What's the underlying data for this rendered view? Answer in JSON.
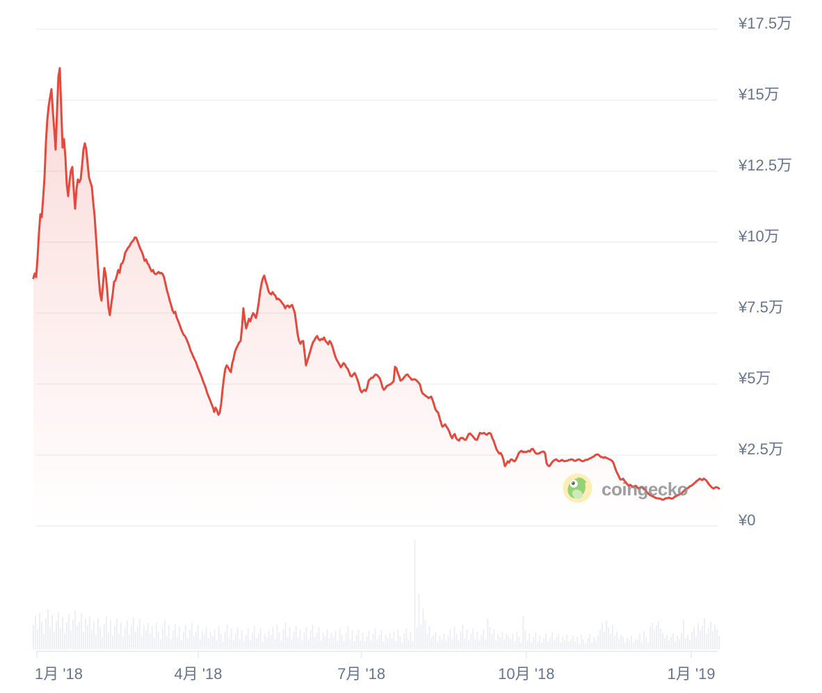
{
  "page": {
    "background": "#ffffff"
  },
  "watermark": {
    "text": "coingecko"
  },
  "colors": {
    "line": "#e5483d",
    "area_top": "rgba(229,72,61,0.22)",
    "area_bottom": "rgba(229,72,61,0)",
    "gridline": "#eef0f4",
    "axis_line": "#e7eaef",
    "label": "#66758d",
    "volume_bar": "#edeff5",
    "watermark_text": "#8a8a8a",
    "gecko_circle": "#fceeb5",
    "gecko_body": "#93d276",
    "gecko_belly": "#cdeab8",
    "gecko_pupil": "#4e5b4e"
  },
  "chart_data": {
    "type": "line",
    "title": "",
    "currency": "JPY",
    "legend": "none",
    "grid": "horizontal-only",
    "y_axis": {
      "position": "right",
      "unit": "万円 (10,000 JPY)",
      "ylim": [
        0,
        17.5
      ],
      "ticks": [
        {
          "value": 0,
          "label": "¥0"
        },
        {
          "value": 2.5,
          "label": "¥2.5万"
        },
        {
          "value": 5,
          "label": "¥5万"
        },
        {
          "value": 7.5,
          "label": "¥7.5万"
        },
        {
          "value": 10,
          "label": "¥10万"
        },
        {
          "value": 12.5,
          "label": "¥12.5万"
        },
        {
          "value": 15,
          "label": "¥15万"
        },
        {
          "value": 17.5,
          "label": "¥17.5万"
        }
      ]
    },
    "x_axis": {
      "unit": "days since 2018-01-01",
      "xlim": [
        -2,
        380.5
      ],
      "ticks": [
        {
          "day": 0,
          "label": "1月 '18"
        },
        {
          "day": 90,
          "label": "4月 '18"
        },
        {
          "day": 181,
          "label": "7月 '18"
        },
        {
          "day": 273,
          "label": "10月 '18"
        },
        {
          "day": 365,
          "label": "1月 '19"
        }
      ]
    },
    "price_series": {
      "name": "price",
      "unit": "万円",
      "start_day": -1.94,
      "end_day": 380.5,
      "values": [
        8.73,
        8.9,
        8.77,
        9.46,
        10.32,
        10.98,
        10.88,
        11.54,
        12.28,
        13.5,
        14.31,
        14.8,
        15.1,
        15.39,
        14.61,
        13.97,
        13.26,
        14.61,
        15.83,
        16.13,
        14.73,
        13.33,
        13.63,
        13.01,
        12.03,
        11.62,
        12.16,
        12.52,
        12.65,
        11.86,
        11.18,
        11.86,
        12.21,
        12.11,
        12.21,
        12.7,
        13.26,
        13.48,
        13.26,
        12.77,
        12.28,
        12.11,
        11.96,
        11.42,
        10.93,
        10.2,
        9.46,
        8.73,
        8.19,
        7.94,
        8.48,
        9.09,
        8.85,
        8.36,
        7.7,
        7.43,
        7.82,
        8.16,
        8.6,
        8.65,
        8.82,
        9.02,
        8.92,
        9.22,
        9.26,
        9.39,
        9.63,
        9.71,
        9.8,
        9.85,
        9.95,
        10.02,
        10.07,
        10.17,
        10.15,
        10.02,
        9.88,
        9.75,
        9.66,
        9.51,
        9.34,
        9.39,
        9.26,
        9.19,
        9.07,
        8.97,
        9.02,
        8.9,
        8.87,
        8.9,
        8.95,
        8.9,
        8.92,
        8.87,
        8.75,
        8.53,
        8.31,
        8.14,
        7.94,
        7.79,
        7.6,
        7.5,
        7.55,
        7.35,
        7.23,
        7.11,
        6.96,
        6.84,
        6.74,
        6.69,
        6.59,
        6.47,
        6.35,
        6.18,
        6.08,
        5.96,
        5.86,
        5.76,
        5.61,
        5.49,
        5.37,
        5.25,
        5.1,
        4.98,
        4.85,
        4.68,
        4.56,
        4.44,
        4.31,
        4.19,
        4.02,
        4.17,
        4.07,
        3.92,
        4.0,
        4.31,
        4.8,
        5.22,
        5.54,
        5.66,
        5.59,
        5.49,
        5.42,
        5.74,
        5.91,
        6.15,
        6.27,
        6.37,
        6.47,
        6.52,
        7.01,
        7.67,
        7.25,
        6.96,
        7.13,
        7.3,
        7.21,
        7.38,
        7.5,
        7.43,
        7.33,
        7.55,
        7.87,
        8.24,
        8.53,
        8.73,
        8.82,
        8.63,
        8.48,
        8.28,
        8.19,
        8.16,
        8.24,
        8.16,
        8.11,
        7.99,
        8.01,
        7.97,
        7.92,
        7.84,
        7.79,
        7.67,
        7.75,
        7.77,
        7.7,
        7.75,
        7.79,
        7.65,
        7.5,
        7.13,
        6.76,
        6.52,
        6.42,
        6.5,
        6.52,
        6.1,
        5.66,
        5.83,
        5.98,
        6.15,
        6.32,
        6.47,
        6.54,
        6.64,
        6.69,
        6.59,
        6.54,
        6.59,
        6.57,
        6.64,
        6.52,
        6.47,
        6.4,
        6.52,
        6.45,
        6.32,
        6.15,
        5.98,
        5.86,
        5.78,
        5.69,
        5.59,
        5.66,
        5.74,
        5.69,
        5.59,
        5.54,
        5.42,
        5.29,
        5.27,
        5.34,
        5.39,
        5.29,
        5.15,
        5.0,
        4.8,
        4.71,
        4.76,
        4.8,
        4.76,
        4.88,
        5.12,
        5.17,
        5.22,
        5.22,
        5.29,
        5.34,
        5.32,
        5.27,
        5.2,
        5.07,
        4.88,
        4.8,
        4.85,
        4.93,
        4.95,
        4.98,
        5.0,
        5.05,
        5.1,
        5.61,
        5.56,
        5.39,
        5.27,
        5.12,
        5.15,
        5.2,
        5.27,
        5.32,
        5.34,
        5.27,
        5.22,
        5.15,
        5.17,
        5.17,
        5.15,
        5.1,
        5.05,
        4.98,
        4.76,
        4.66,
        4.63,
        4.58,
        4.56,
        4.51,
        4.53,
        4.56,
        4.44,
        4.29,
        4.12,
        4.04,
        4.0,
        3.82,
        3.65,
        3.5,
        3.53,
        3.58,
        3.5,
        3.43,
        3.33,
        3.19,
        3.09,
        3.19,
        3.24,
        3.09,
        3.04,
        3.01,
        3.09,
        3.11,
        3.09,
        3.04,
        3.04,
        3.14,
        3.24,
        3.26,
        3.21,
        3.16,
        3.09,
        3.04,
        3.04,
        3.16,
        3.28,
        3.26,
        3.26,
        3.28,
        3.24,
        3.21,
        3.26,
        3.28,
        3.24,
        3.09,
        2.99,
        2.84,
        2.7,
        2.62,
        2.55,
        2.57,
        2.48,
        2.33,
        2.11,
        2.18,
        2.28,
        2.23,
        2.33,
        2.35,
        2.3,
        2.28,
        2.35,
        2.45,
        2.57,
        2.62,
        2.65,
        2.6,
        2.62,
        2.6,
        2.62,
        2.65,
        2.62,
        2.7,
        2.72,
        2.65,
        2.57,
        2.55,
        2.55,
        2.57,
        2.6,
        2.62,
        2.62,
        2.55,
        2.21,
        2.13,
        2.11,
        2.18,
        2.25,
        2.3,
        2.33,
        2.35,
        2.3,
        2.28,
        2.3,
        2.33,
        2.3,
        2.28,
        2.3,
        2.3,
        2.33,
        2.33,
        2.35,
        2.33,
        2.3,
        2.3,
        2.33,
        2.35,
        2.33,
        2.3,
        2.28,
        2.3,
        2.33,
        2.33,
        2.35,
        2.38,
        2.4,
        2.43,
        2.45,
        2.5,
        2.52,
        2.52,
        2.48,
        2.43,
        2.43,
        2.4,
        2.43,
        2.4,
        2.38,
        2.35,
        2.33,
        2.3,
        2.23,
        2.08,
        1.94,
        1.84,
        1.74,
        1.64,
        1.64,
        1.67,
        1.59,
        1.54,
        1.47,
        1.42,
        1.45,
        1.42,
        1.37,
        1.4,
        1.42,
        1.37,
        1.32,
        1.35,
        1.37,
        1.35,
        1.3,
        1.27,
        1.2,
        1.15,
        1.1,
        1.08,
        1.05,
        1.03,
        1.0,
        0.98,
        0.98,
        0.96,
        0.96,
        0.93,
        0.93,
        0.96,
        0.98,
        0.98,
        1.0,
        0.98,
        0.96,
        0.98,
        1.03,
        1.05,
        1.08,
        1.1,
        1.13,
        1.15,
        1.2,
        1.25,
        1.3,
        1.32,
        1.35,
        1.4,
        1.42,
        1.45,
        1.5,
        1.54,
        1.59,
        1.62,
        1.67,
        1.64,
        1.62,
        1.67,
        1.64,
        1.59,
        1.52,
        1.45,
        1.4,
        1.35,
        1.32,
        1.35,
        1.37,
        1.35,
        1.32
      ]
    },
    "volume_series": {
      "name": "volume",
      "unit": "relative (100 = largest spike)",
      "start_day": -1.94,
      "end_day": 380.5,
      "values": [
        22,
        30,
        18,
        33,
        25,
        14,
        28,
        36,
        20,
        31,
        16,
        26,
        34,
        19,
        29,
        15,
        24,
        32,
        17,
        27,
        35,
        21,
        25,
        33,
        16,
        28,
        22,
        30,
        17,
        25,
        13,
        28,
        20,
        11,
        23,
        30,
        15,
        26,
        12,
        21,
        28,
        14,
        24,
        11,
        19,
        26,
        13,
        22,
        29,
        16,
        20,
        27,
        12,
        22,
        17,
        24,
        14,
        21,
        10,
        24,
        16,
        9,
        19,
        26,
        12,
        22,
        9,
        17,
        23,
        11,
        20,
        8,
        16,
        22,
        10,
        18,
        24,
        12,
        16,
        22,
        9,
        17,
        13,
        20,
        10,
        16,
        12,
        18,
        8,
        21,
        14,
        7,
        16,
        22,
        10,
        19,
        8,
        14,
        20,
        9,
        17,
        7,
        13,
        19,
        8,
        15,
        21,
        10,
        14,
        19,
        7,
        14,
        11,
        17,
        13,
        20,
        9,
        22,
        15,
        8,
        18,
        24,
        11,
        20,
        9,
        16,
        21,
        10,
        18,
        8,
        15,
        20,
        9,
        17,
        22,
        11,
        15,
        20,
        8,
        15,
        12,
        18,
        10,
        15,
        11,
        17,
        8,
        19,
        13,
        7,
        15,
        21,
        9,
        17,
        7,
        13,
        18,
        8,
        15,
        7,
        12,
        17,
        8,
        14,
        19,
        9,
        13,
        17,
        7,
        13,
        10,
        15,
        10,
        16,
        7,
        18,
        12,
        6,
        14,
        19,
        9,
        16,
        7,
        100,
        20,
        50,
        22,
        37,
        26,
        14,
        21,
        11,
        13,
        16,
        7,
        12,
        9,
        14,
        8,
        12,
        18,
        9,
        20,
        14,
        8,
        16,
        22,
        10,
        18,
        8,
        14,
        19,
        9,
        16,
        8,
        13,
        18,
        9,
        28,
        20,
        14,
        18,
        8,
        14,
        11,
        16,
        9,
        14,
        12,
        9,
        14,
        7,
        16,
        11,
        6,
        30,
        17,
        8,
        14,
        6,
        11,
        15,
        7,
        12,
        6,
        10,
        14,
        7,
        11,
        16,
        8,
        11,
        14,
        6,
        11,
        8,
        13,
        7,
        9,
        12,
        7,
        11,
        5,
        13,
        9,
        5,
        10,
        14,
        6,
        11,
        8,
        12,
        18,
        24,
        16,
        26,
        20,
        14,
        22,
        12,
        16,
        9,
        13,
        11,
        6,
        10,
        8,
        12,
        6,
        9,
        9,
        14,
        7,
        16,
        11,
        6,
        21,
        24,
        18,
        22,
        25,
        19,
        15,
        10,
        13,
        8,
        11,
        14,
        7,
        12,
        9,
        15,
        27,
        10,
        13,
        8,
        16,
        20,
        12,
        24,
        17,
        21,
        28,
        14,
        19,
        25,
        16,
        22,
        18,
        12
      ]
    }
  }
}
